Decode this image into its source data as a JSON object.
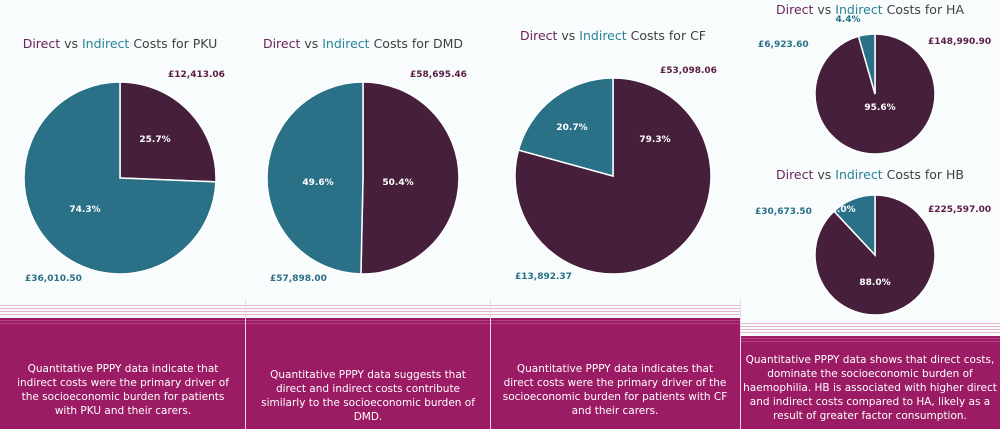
{
  "colors": {
    "direct": "#451f3b",
    "indirect": "#2a7086",
    "band": "#9b1b64"
  },
  "chart_data": [
    {
      "type": "pie",
      "title": {
        "direct": "Direct",
        "vs": " vs ",
        "indirect": "Indirect",
        "rest": " Costs for PKU"
      },
      "slices": [
        {
          "label": "Direct",
          "value": 12413.06,
          "amount": "£12,413.06",
          "pct": "25.7%"
        },
        {
          "label": "Indirect",
          "value": 36010.5,
          "amount": "£36,010.50",
          "pct": "74.3%"
        }
      ]
    },
    {
      "type": "pie",
      "title": {
        "direct": "Direct",
        "vs": " vs ",
        "indirect": "Indirect",
        "rest": " Costs for DMD"
      },
      "slices": [
        {
          "label": "Direct",
          "value": 58695.46,
          "amount": "£58,695.46",
          "pct": "50.4%"
        },
        {
          "label": "Indirect",
          "value": 57898.0,
          "amount": "£57,898.00",
          "pct": "49.6%"
        }
      ]
    },
    {
      "type": "pie",
      "title": {
        "direct": "Direct",
        "vs": " vs ",
        "indirect": "Indirect",
        "rest": " Costs for CF"
      },
      "slices": [
        {
          "label": "Direct",
          "value": 53098.06,
          "amount": "£53,098.06",
          "pct": "79.3%"
        },
        {
          "label": "Indirect",
          "value": 13892.37,
          "amount": "£13,892.37",
          "pct": "20.7%"
        }
      ]
    },
    {
      "type": "pie",
      "title": {
        "direct": "Direct",
        "vs": " vs ",
        "indirect": "Indirect",
        "rest": " Costs for HA"
      },
      "slices": [
        {
          "label": "Direct",
          "value": 148990.9,
          "amount": "£148,990.90",
          "pct": "95.6%"
        },
        {
          "label": "Indirect",
          "value": 6923.6,
          "amount": "£6,923.60",
          "pct": "4.4%"
        }
      ]
    },
    {
      "type": "pie",
      "title": {
        "direct": "Direct",
        "vs": " vs ",
        "indirect": "Indirect",
        "rest": " Costs for HB"
      },
      "slices": [
        {
          "label": "Direct",
          "value": 225597.0,
          "amount": "£225,597.00",
          "pct": "88.0%"
        },
        {
          "label": "Indirect",
          "value": 30673.5,
          "amount": "£30,673.50",
          "pct": "12.0%"
        }
      ]
    }
  ],
  "descriptions": [
    "Quantitative PPPY data indicate that indirect costs were the primary driver of the socioeconomic burden for patients with PKU and their carers.",
    "Quantitative PPPY data suggests that direct and indirect costs contribute similarly to the socioeconomic burden of DMD.",
    "Quantitative PPPY data indicates that direct costs were the primary driver of the socioeconomic burden for patients with CF and their carers.",
    "Quantitative PPPY data shows that direct costs, dominate the socioeconomic burden of haemophilia. HB is associated with higher direct and indirect costs compared to HA, likely as a result of greater factor consumption."
  ]
}
